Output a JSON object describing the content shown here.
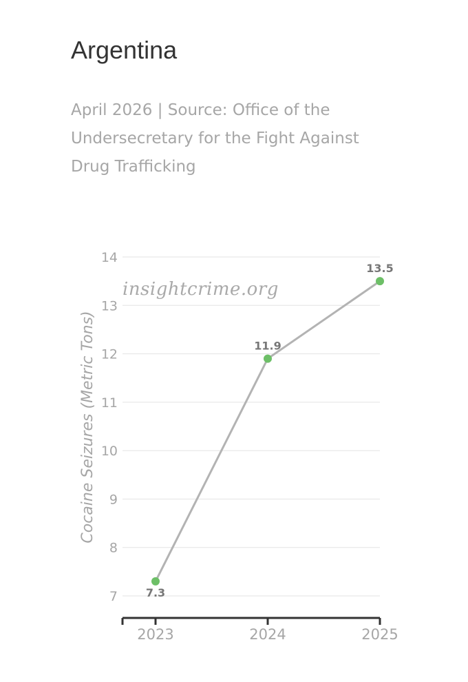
{
  "header": {
    "title": "Argentina",
    "subtitle": "April 2026 | Source: Office of the Undersecretary for the Fight Against Drug Trafficking"
  },
  "watermark": "insightcrime.org",
  "chart_data": {
    "type": "line",
    "title": "Argentina",
    "subtitle": "April 2026 | Source: Office of the Undersecretary for the Fight Against Drug Trafficking",
    "xlabel": "",
    "ylabel": "Cocaine Seizures (Metric Tons)",
    "categories": [
      "2023",
      "2024",
      "2025"
    ],
    "series": [
      {
        "values": [
          7.3,
          11.9,
          13.5
        ],
        "data_labels": [
          "7.3",
          "11.9",
          "13.5"
        ]
      }
    ],
    "ylim": [
      7,
      14
    ],
    "yticks": [
      7,
      8,
      9,
      10,
      11,
      12,
      13,
      14
    ],
    "grid": true,
    "legend": "none",
    "colors": {
      "line": "#b3b3b3",
      "marker": "#6dbf67",
      "grid": "#e3e3e3",
      "axis": "#333333"
    }
  }
}
